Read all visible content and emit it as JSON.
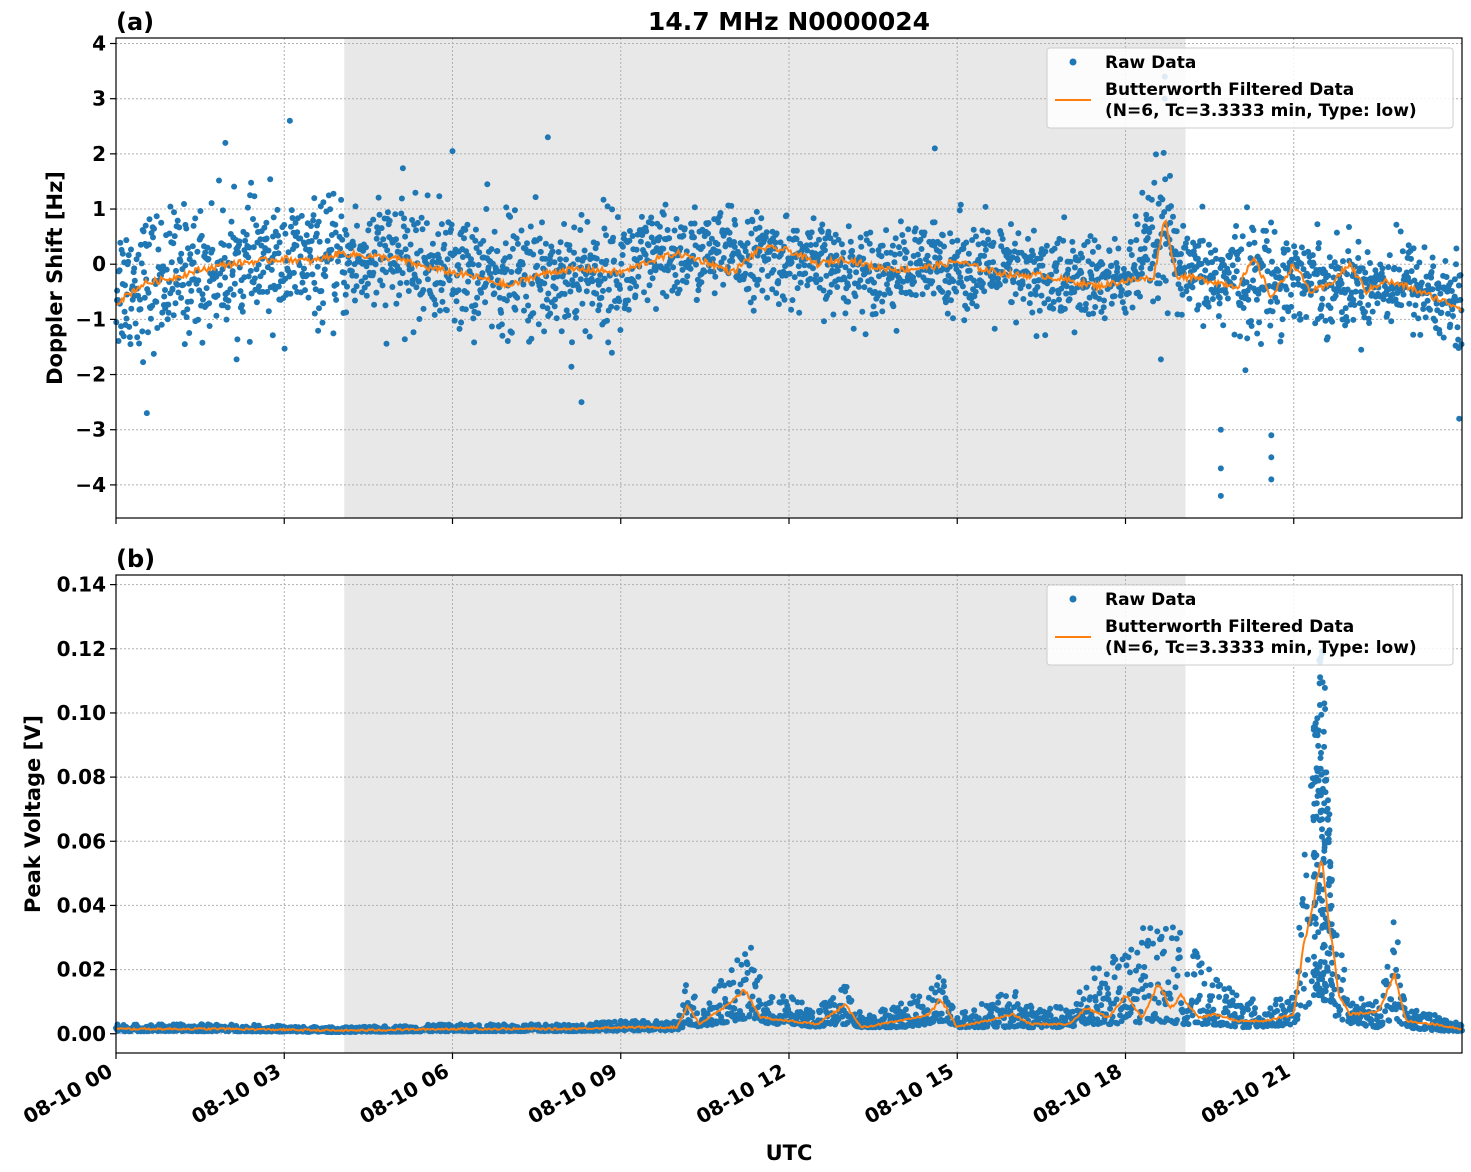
{
  "chart_data": [
    {
      "type": "scatter",
      "panel_label": "(a)",
      "title": "14.7 MHz N0000024",
      "xlabel": "",
      "ylabel": "Doppler Shift [Hz]",
      "ylim": [
        -4.6,
        4.1
      ],
      "yticks": [
        4,
        3,
        2,
        1,
        0,
        -1,
        -2,
        -3,
        -4
      ],
      "ytick_labels": [
        "4",
        "3",
        "2",
        "1",
        "0",
        "−1",
        "−2",
        "−3",
        "−4"
      ],
      "xlim_hours": [
        0,
        24
      ],
      "shaded_region_hours": [
        4.07,
        19.07
      ],
      "grid": true,
      "legend": {
        "placement": "top-right",
        "entries": [
          "Raw Data",
          "Butterworth Filtered Data",
          "(N=6, Tc=3.3333 min, Type: low)"
        ]
      },
      "series": [
        {
          "name": "Raw Data",
          "color": "#1f77b4",
          "kind": "scatter",
          "x_hours": [
            0,
            1,
            2,
            3,
            4,
            5,
            6,
            7,
            8,
            9,
            10,
            11,
            12,
            13,
            14,
            15,
            16,
            17,
            18,
            18.7,
            19,
            20,
            21,
            22,
            23,
            24
          ],
          "center": [
            -0.4,
            -0.2,
            -0.05,
            0.05,
            0.05,
            0.1,
            -0.1,
            -0.25,
            -0.2,
            -0.15,
            0.15,
            0.2,
            0.05,
            -0.1,
            -0.1,
            0.0,
            -0.2,
            -0.3,
            -0.3,
            0.5,
            -0.2,
            -0.3,
            -0.2,
            -0.4,
            -0.3,
            -0.8
          ],
          "spread": [
            1.5,
            1.4,
            1.3,
            1.3,
            1.2,
            1.3,
            1.2,
            1.3,
            1.4,
            1.3,
            1.0,
            0.9,
            0.9,
            0.9,
            0.9,
            1.0,
            1.0,
            1.1,
            0.8,
            1.8,
            0.8,
            1.3,
            1.0,
            0.9,
            0.9,
            1.2
          ],
          "outliers": [
            {
              "x_hours": 19.7,
              "y": -4.2
            },
            {
              "x_hours": 19.7,
              "y": -3.7
            },
            {
              "x_hours": 19.7,
              "y": -3.0
            },
            {
              "x_hours": 20.6,
              "y": -3.9
            },
            {
              "x_hours": 20.6,
              "y": -3.1
            },
            {
              "x_hours": 20.6,
              "y": -3.5
            },
            {
              "x_hours": 18.7,
              "y": 3.4
            },
            {
              "x_hours": 18.7,
              "y": 3.0
            },
            {
              "x_hours": 3.1,
              "y": 2.6
            },
            {
              "x_hours": 1.95,
              "y": 2.2
            },
            {
              "x_hours": 7.7,
              "y": 2.3
            },
            {
              "x_hours": 0.55,
              "y": -2.7
            },
            {
              "x_hours": 8.3,
              "y": -2.5
            },
            {
              "x_hours": 23.95,
              "y": -2.8
            },
            {
              "x_hours": 6,
              "y": 2.05
            },
            {
              "x_hours": 14.6,
              "y": 2.1
            }
          ]
        },
        {
          "name": "Butterworth Filtered Data",
          "color": "#ff7f0e",
          "kind": "line",
          "x_hours": [
            0,
            0.5,
            1,
            1.5,
            2,
            2.5,
            3,
            3.5,
            4,
            4.5,
            5,
            5.5,
            6,
            6.5,
            7,
            7.5,
            8,
            8.5,
            9,
            9.5,
            10,
            10.5,
            11,
            11.5,
            12,
            12.5,
            13,
            13.5,
            14,
            14.5,
            15,
            15.5,
            16,
            16.5,
            17,
            17.5,
            18,
            18.5,
            18.7,
            18.9,
            19.5,
            20,
            20.3,
            20.6,
            21,
            21.3,
            21.6,
            22,
            22.3,
            22.6,
            23,
            23.5,
            24
          ],
          "y": [
            -0.7,
            -0.35,
            -0.25,
            -0.1,
            0.0,
            0.05,
            0.1,
            0.05,
            0.2,
            0.15,
            0.1,
            -0.05,
            -0.15,
            -0.25,
            -0.4,
            -0.2,
            -0.1,
            -0.1,
            -0.15,
            0.05,
            0.2,
            0.05,
            -0.15,
            0.3,
            0.25,
            0.0,
            0.1,
            -0.05,
            -0.1,
            -0.05,
            0.05,
            -0.1,
            -0.2,
            -0.2,
            -0.3,
            -0.4,
            -0.3,
            -0.25,
            0.85,
            -0.2,
            -0.3,
            -0.4,
            0.1,
            -0.6,
            0.0,
            -0.5,
            -0.4,
            0.0,
            -0.5,
            -0.3,
            -0.4,
            -0.6,
            -0.8
          ]
        }
      ]
    },
    {
      "type": "scatter",
      "panel_label": "(b)",
      "title": "",
      "xlabel": "UTC",
      "ylabel": "Peak Voltage [V]",
      "ylim": [
        -0.006,
        0.143
      ],
      "yticks": [
        0.14,
        0.12,
        0.1,
        0.08,
        0.06,
        0.04,
        0.02,
        0.0
      ],
      "ytick_labels": [
        "0.14",
        "0.12",
        "0.10",
        "0.08",
        "0.06",
        "0.04",
        "0.02",
        "0.00"
      ],
      "xlim_hours": [
        0,
        24
      ],
      "xticks_hours": [
        0,
        3,
        6,
        9,
        12,
        15,
        18,
        21
      ],
      "xtick_labels": [
        "08-10 00",
        "08-10 03",
        "08-10 06",
        "08-10 09",
        "08-10 12",
        "08-10 15",
        "08-10 18",
        "08-10 21"
      ],
      "shaded_region_hours": [
        4.07,
        19.07
      ],
      "grid": true,
      "legend": {
        "placement": "top-right",
        "entries": [
          "Raw Data",
          "Butterworth Filtered Data",
          "(N=6, Tc=3.3333 min, Type: low)"
        ]
      },
      "series": [
        {
          "name": "Raw Data",
          "color": "#1f77b4",
          "kind": "scatter",
          "x_hours": [
            0,
            2,
            4,
            6,
            8,
            9,
            10,
            10.2,
            10.4,
            11,
            11.3,
            11.6,
            12,
            12.5,
            13,
            13.3,
            14,
            14.5,
            14.7,
            15,
            15.5,
            16,
            16.3,
            17,
            17.3,
            18,
            18.5,
            19,
            19.5,
            20,
            20.5,
            21,
            21.3,
            21.5,
            21.7,
            22,
            22.5,
            22.8,
            23,
            23.5,
            24
          ],
          "upper": [
            0.003,
            0.003,
            0.002,
            0.003,
            0.003,
            0.004,
            0.004,
            0.02,
            0.008,
            0.022,
            0.028,
            0.012,
            0.012,
            0.008,
            0.016,
            0.006,
            0.01,
            0.014,
            0.022,
            0.006,
            0.01,
            0.014,
            0.01,
            0.008,
            0.02,
            0.026,
            0.038,
            0.032,
            0.02,
            0.012,
            0.01,
            0.012,
            0.08,
            0.135,
            0.04,
            0.012,
            0.01,
            0.037,
            0.008,
            0.006,
            0.003
          ],
          "lower": [
            0.0008,
            0.0008,
            0.0005,
            0.0008,
            0.0008,
            0.001,
            0.001,
            0.003,
            0.002,
            0.004,
            0.005,
            0.003,
            0.003,
            0.002,
            0.003,
            0.002,
            0.002,
            0.003,
            0.004,
            0.002,
            0.002,
            0.002,
            0.002,
            0.002,
            0.003,
            0.003,
            0.004,
            0.003,
            0.003,
            0.002,
            0.002,
            0.003,
            0.01,
            0.02,
            0.006,
            0.003,
            0.002,
            0.005,
            0.002,
            0.001,
            0.0008
          ]
        },
        {
          "name": "Butterworth Filtered Data",
          "color": "#ff7f0e",
          "kind": "line",
          "x_hours": [
            0,
            2,
            4,
            6,
            8,
            9,
            10,
            10.2,
            10.4,
            11,
            11.2,
            11.5,
            12,
            12.5,
            13,
            13.3,
            14,
            14.5,
            14.7,
            15,
            15.5,
            16,
            16.3,
            17,
            17.3,
            17.7,
            18,
            18.3,
            18.6,
            18.8,
            19,
            19.3,
            19.6,
            20,
            20.5,
            21,
            21.2,
            21.4,
            21.5,
            21.6,
            21.8,
            22,
            22.5,
            22.8,
            23,
            23.5,
            24
          ],
          "y": [
            0.0015,
            0.0015,
            0.001,
            0.0015,
            0.0015,
            0.002,
            0.002,
            0.009,
            0.003,
            0.01,
            0.014,
            0.005,
            0.004,
            0.003,
            0.009,
            0.002,
            0.004,
            0.006,
            0.011,
            0.002,
            0.004,
            0.006,
            0.003,
            0.003,
            0.008,
            0.005,
            0.012,
            0.005,
            0.016,
            0.008,
            0.012,
            0.005,
            0.006,
            0.004,
            0.004,
            0.006,
            0.03,
            0.045,
            0.057,
            0.04,
            0.012,
            0.006,
            0.007,
            0.018,
            0.004,
            0.003,
            0.0015
          ]
        }
      ]
    }
  ]
}
